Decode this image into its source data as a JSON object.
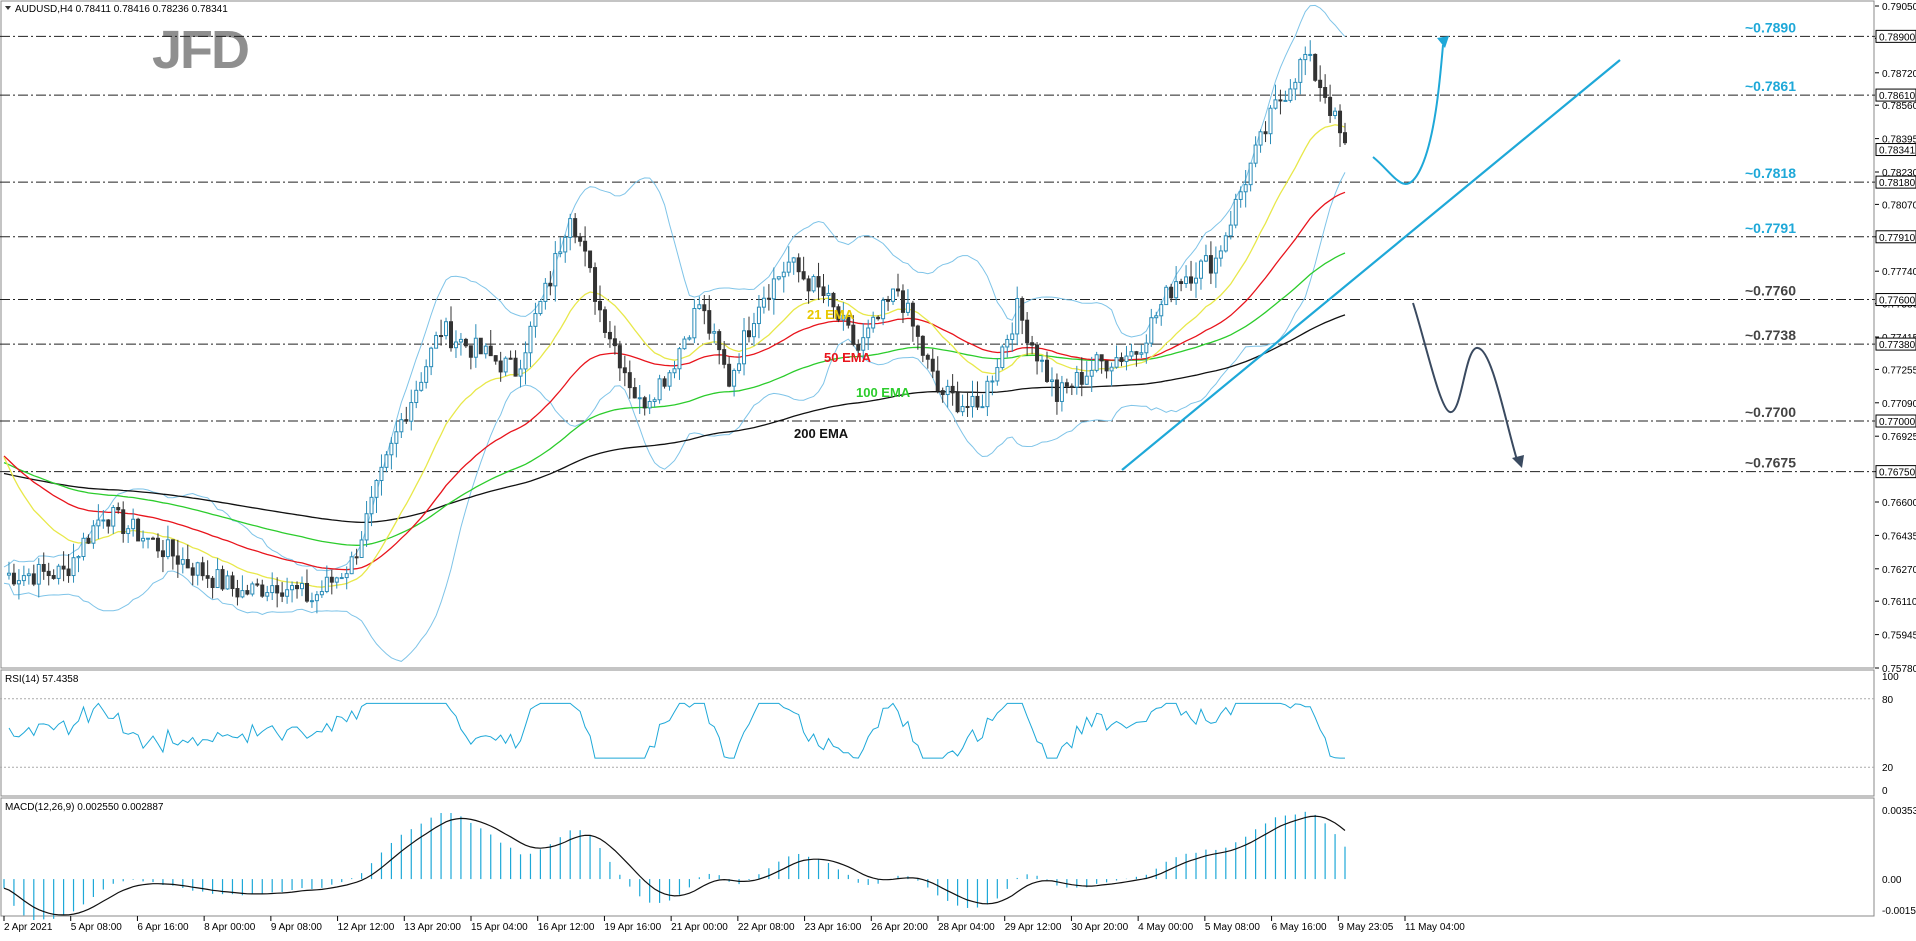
{
  "header": {
    "symbol_info": "AUDUSD,H4  0.78411 0.78416 0.78236 0.78341",
    "logo": "JFD"
  },
  "colors": {
    "candle_up": "#ffffff",
    "candle_down": "#333333",
    "candle_outline": "#2a8cb8",
    "ema21": "#e8e84a",
    "ema50": "#e8141c",
    "ema100": "#2ccc2c",
    "ema200": "#111111",
    "bollinger": "#7fc4e8",
    "trendline": "#1ea8d8",
    "level_cyan": "#1ea8d8",
    "level_dark": "#444444",
    "rsi_line": "#1ea8d8",
    "macd_hist": "#1ea8d8",
    "macd_signal": "#111111",
    "gridline_dash": "#222222"
  },
  "chart_data": [
    {
      "type": "line",
      "title": "AUDUSD,H4",
      "subtitle": "0.78411 0.78416 0.78236 0.78341",
      "xlabel": "",
      "ylabel": "",
      "ylim": [
        0.7578,
        0.7905
      ],
      "grid": false,
      "price_axis_ticks": [
        "0.79050",
        "0.78890",
        "0.78720",
        "0.78560",
        "0.78395",
        "0.78230",
        "0.78070",
        "0.77910",
        "0.77740",
        "0.77580",
        "0.77415",
        "0.77255",
        "0.77090",
        "0.76925",
        "0.76750",
        "0.76600",
        "0.76435",
        "0.76270",
        "0.76110",
        "0.75945",
        "0.75780"
      ],
      "highlighted_axis_labels": [
        "0.78900",
        "0.78610",
        "0.78341",
        "0.78180",
        "0.77910",
        "0.77600",
        "0.77380",
        "0.77000",
        "0.76750"
      ],
      "current_price": 0.78341,
      "time_axis_labels": [
        "2 Apr 2021",
        "5 Apr 08:00",
        "6 Apr 16:00",
        "8 Apr 00:00",
        "9 Apr 08:00",
        "12 Apr 12:00",
        "13 Apr 20:00",
        "15 Apr 04:00",
        "16 Apr 12:00",
        "19 Apr 16:00",
        "21 Apr 00:00",
        "22 Apr 08:00",
        "23 Apr 16:00",
        "26 Apr 20:00",
        "28 Apr 04:00",
        "29 Apr 12:00",
        "30 Apr 20:00",
        "4 May 00:00",
        "5 May 08:00",
        "6 May 16:00",
        "9 May 23:05",
        "11 May 04:00"
      ],
      "levels": [
        {
          "label": "~0.7890",
          "value": 0.789,
          "color": "cyan"
        },
        {
          "label": "~0.7861",
          "value": 0.7861,
          "color": "cyan"
        },
        {
          "label": "~0.7818",
          "value": 0.7818,
          "color": "cyan"
        },
        {
          "label": "~0.7791",
          "value": 0.7791,
          "color": "cyan"
        },
        {
          "label": "~0.7760",
          "value": 0.776,
          "color": "dark"
        },
        {
          "label": "~0.7738",
          "value": 0.7738,
          "color": "dark"
        },
        {
          "label": "~0.7700",
          "value": 0.77,
          "color": "dark"
        },
        {
          "label": "~0.7675",
          "value": 0.7675,
          "color": "dark"
        }
      ],
      "series": [
        {
          "name": "21 EMA",
          "label_color": "#e8c800"
        },
        {
          "name": "50 EMA",
          "label_color": "#e8141c"
        },
        {
          "name": "100 EMA",
          "label_color": "#2ccc2c"
        },
        {
          "name": "200 EMA",
          "label_color": "#111111"
        }
      ],
      "annotations": [
        "Uptrend line from 4 May low",
        "Bullish projection arrow to ~0.7890",
        "Bearish projection arrow to ~0.7675"
      ]
    },
    {
      "type": "line",
      "title": "RSI(14) 57.4358",
      "ylim": [
        0,
        100
      ],
      "axis_ticks": [
        "100",
        "80",
        "20",
        "0"
      ],
      "reference_lines": [
        80,
        20
      ],
      "last_value": 57.4358
    },
    {
      "type": "bar",
      "title": "MACD(12,26,9) 0.002550 0.002887",
      "ylim": [
        -0.00158,
        0.00353
      ],
      "axis_ticks": [
        "0.00353",
        "0.00",
        "-0.00158"
      ],
      "macd": 0.00255,
      "signal": 0.002887
    }
  ],
  "ema_labels": {
    "ema21": "21 EMA",
    "ema50": "50 EMA",
    "ema100": "100 EMA",
    "ema200": "200 EMA"
  },
  "panes": {
    "rsi_label": "RSI(14) 57.4358",
    "macd_label": "MACD(12,26,9) 0.002550 0.002887"
  }
}
